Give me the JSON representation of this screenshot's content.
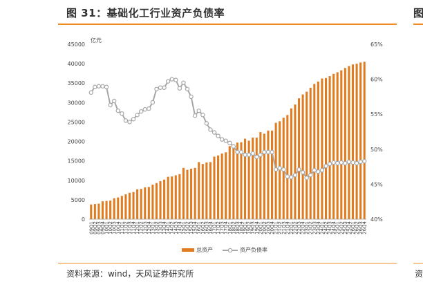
{
  "header": {
    "title": "图 31：基础化工行业资产负债率",
    "title_cut_right": "图"
  },
  "footer": {
    "source": "资料来源：wind，天风证券研究所",
    "source_cut_right": "资"
  },
  "colors": {
    "accent": "#f08c22",
    "bar": "#e07b1f",
    "line": "#a6a6a6",
    "marker_fill": "#ffffff"
  },
  "chart_data": {
    "type": "bar",
    "y_left_unit_label": "亿元",
    "y_left_range": [
      0,
      45000
    ],
    "y_left_ticks": [
      0,
      5000,
      10000,
      15000,
      20000,
      25000,
      30000,
      35000,
      40000,
      45000
    ],
    "y_right_range": [
      40,
      65
    ],
    "y_right_ticks": [
      "40%",
      "45%",
      "50%",
      "55%",
      "60%",
      "65%"
    ],
    "categories": [
      "09Q1",
      "09Q2",
      "09Q3",
      "09Q4",
      "10Q1",
      "10Q2",
      "10Q3",
      "10Q4",
      "11Q1",
      "11Q2",
      "11Q3",
      "11Q4",
      "12Q1",
      "12Q2",
      "12Q3",
      "12Q4",
      "13Q1",
      "13Q2",
      "13Q3",
      "13Q4",
      "14Q1",
      "14Q2",
      "14Q3",
      "14Q4",
      "15Q1",
      "15Q2",
      "15Q3",
      "15Q4",
      "16Q1",
      "16Q2",
      "16Q3",
      "16Q4",
      "17Q1",
      "17Q2",
      "17Q3",
      "17Q4",
      "18Q1",
      "18Q2",
      "18Q3",
      "18Q4",
      "19Q1",
      "19Q2",
      "19Q3",
      "19Q4",
      "20Q1",
      "20Q2",
      "20Q3",
      "20Q4",
      "21Q1",
      "21Q2",
      "21Q3",
      "21Q4",
      "22Q1",
      "22Q2",
      "22Q3",
      "22Q4",
      "23Q1",
      "23Q2",
      "23Q3",
      "23Q4",
      "24Q1",
      "24Q2",
      "24Q3",
      "24Q4",
      "25Q1",
      "25Q2",
      "25Q3",
      "25Q4",
      "26Q1",
      "26Q2",
      "26Q3",
      "26Q4"
    ],
    "series": [
      {
        "name": "总资产",
        "type": "bar",
        "axis": "left",
        "values": [
          3800,
          3900,
          4000,
          4600,
          4700,
          4800,
          5400,
          5600,
          6000,
          6400,
          6800,
          7000,
          7700,
          7800,
          8200,
          8300,
          8900,
          9300,
          9800,
          10200,
          10900,
          11000,
          11300,
          11600,
          13200,
          12700,
          13000,
          13200,
          14700,
          14200,
          14600,
          14700,
          16100,
          16400,
          16900,
          17200,
          18800,
          19200,
          19700,
          19800,
          20700,
          20200,
          21000,
          21000,
          22400,
          22000,
          22800,
          22800,
          24800,
          25200,
          26100,
          26800,
          28500,
          29500,
          31100,
          32100,
          32800,
          33800,
          34800,
          35400,
          36200,
          36300,
          36800,
          37400,
          37800,
          38300,
          38900,
          39400,
          39800,
          40000,
          40300,
          40500
        ]
      },
      {
        "name": "资产负债率",
        "type": "line",
        "axis": "right",
        "values": [
          58.1,
          58.9,
          59.0,
          59.0,
          58.9,
          56.3,
          56.9,
          55.5,
          55.1,
          54.1,
          53.9,
          54.3,
          54.9,
          55.4,
          55.7,
          55.8,
          56.7,
          58.6,
          58.8,
          58.8,
          59.7,
          60.0,
          59.9,
          58.7,
          59.5,
          58.6,
          57.5,
          54.8,
          55.5,
          54.9,
          53.7,
          52.8,
          52.4,
          51.9,
          51.4,
          51.2,
          50.9,
          50.4,
          49.6,
          49.6,
          49.2,
          49.2,
          49.4,
          48.9,
          49.2,
          49.6,
          49.6,
          49.6,
          47.1,
          47.3,
          47.1,
          46.1,
          46.0,
          46.3,
          47.1,
          46.7,
          45.9,
          46.3,
          47.0,
          46.8,
          47.0,
          47.6,
          47.9,
          48.1,
          48.0,
          48.1,
          48.0,
          48.2,
          48.1,
          48.0,
          48.2,
          48.3
        ]
      }
    ],
    "legend_position": "bottom-center"
  }
}
